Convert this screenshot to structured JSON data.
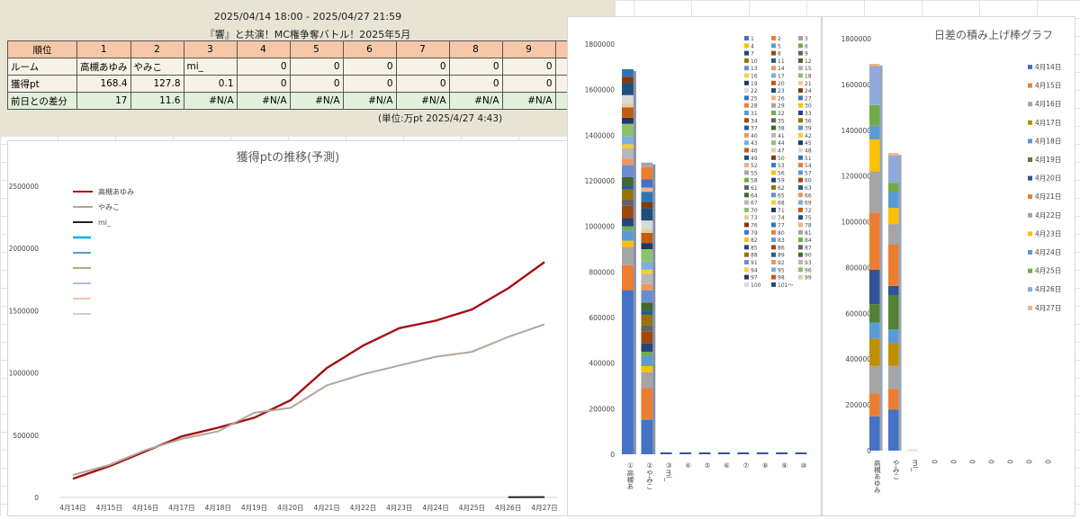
{
  "header": {
    "date_range": "2025/04/14 18:00 - 2025/04/27 21:59",
    "event_title": "『響』と共演！MC権争奪バトル！2025年5月"
  },
  "table": {
    "head": [
      "順位",
      "1",
      "2",
      "3",
      "4",
      "5",
      "6",
      "7",
      "8",
      "9",
      "10"
    ],
    "room": [
      "ルーム",
      "高槻あゆみ",
      "やみこ",
      "mi_",
      "0",
      "0",
      "0",
      "0",
      "0",
      "0",
      "0"
    ],
    "points": [
      "獲得pt",
      "168.4",
      "127.8",
      "0.1",
      "0",
      "0",
      "0",
      "0",
      "0",
      "0",
      "0"
    ],
    "diff": [
      "前日との差分",
      "17",
      "11.6",
      "#N/A",
      "#N/A",
      "#N/A",
      "#N/A",
      "#N/A",
      "#N/A",
      "#N/A",
      "#N/A"
    ]
  },
  "unit_note": "(単位:万pt 2025/4/27 4:43)",
  "colors": {
    "ayumi": "#a50f15",
    "yamiko": "#b3a59b",
    "mi": "#222222",
    "bar_blue": "#4472c4",
    "bar_orange": "#ed7d31",
    "header_orange": "#f7c8a8",
    "diff_green": "#e2efda"
  },
  "chart_data": [
    {
      "type": "line",
      "title": "獲得ptの推移(予測)",
      "categories": [
        "4月14日",
        "4月15日",
        "4月16日",
        "4月17日",
        "4月18日",
        "4月19日",
        "4月20日",
        "4月21日",
        "4月22日",
        "4月23日",
        "4月24日",
        "4月25日",
        "4月26日",
        "4月27日"
      ],
      "ylim": [
        0,
        2500000
      ],
      "yticks": [
        0,
        500000,
        1000000,
        1500000,
        2000000,
        2500000
      ],
      "legend_position": "top-left",
      "series": [
        {
          "name": "高槻あゆみ",
          "color": "#a50f15",
          "values": [
            150000,
            250000,
            370000,
            490000,
            560000,
            640000,
            780000,
            1040000,
            1220000,
            1360000,
            1420000,
            1510000,
            1680000,
            1890000
          ]
        },
        {
          "name": "やみこ",
          "color": "#b3a59b",
          "values": [
            180000,
            260000,
            380000,
            470000,
            530000,
            680000,
            720000,
            900000,
            990000,
            1060000,
            1130000,
            1170000,
            1290000,
            1390000
          ]
        },
        {
          "name": "mi_",
          "color": "#222222",
          "values": [
            null,
            null,
            null,
            null,
            null,
            null,
            null,
            null,
            null,
            null,
            null,
            null,
            2000,
            3000
          ]
        }
      ],
      "extra_legend_colors": [
        "#00b0f0",
        "#2e75b6",
        "#70ad47",
        "#8faadc",
        "#f4b183",
        "#bfbfbf"
      ]
    },
    {
      "type": "bar",
      "title": "",
      "stacked": true,
      "categories": [
        "①高槻あ",
        "②やみこ",
        "③mi_",
        "④",
        "⑤",
        "⑥",
        "⑦",
        "⑧",
        "⑨",
        "⑩"
      ],
      "totals": [
        1690000,
        1280000,
        3000,
        1500,
        1500,
        1500,
        1500,
        1500,
        1500,
        1500
      ],
      "ylim": [
        0,
        1800000
      ],
      "yticks": [
        0,
        200000,
        400000,
        600000,
        800000,
        1000000,
        1200000,
        1400000,
        1600000,
        1800000
      ],
      "base_segments": [
        [
          720000,
          110000,
          80000
        ],
        [
          150000,
          140000,
          70000
        ]
      ],
      "legend_labels": [
        "1",
        "2",
        "3",
        "4",
        "5",
        "6",
        "7",
        "8",
        "9",
        "10",
        "11",
        "12",
        "13",
        "14",
        "15",
        "16",
        "17",
        "18",
        "19",
        "20",
        "21",
        "22",
        "23",
        "24",
        "25",
        "26",
        "27",
        "28",
        "29",
        "30",
        "31",
        "32",
        "33",
        "34",
        "35",
        "36",
        "37",
        "38",
        "39",
        "40",
        "41",
        "42",
        "43",
        "44",
        "45",
        "46",
        "47",
        "48",
        "49",
        "50",
        "51",
        "52",
        "53",
        "54",
        "55",
        "56",
        "57",
        "58",
        "59",
        "60",
        "61",
        "62",
        "63",
        "64",
        "65",
        "66",
        "67",
        "68",
        "69",
        "70",
        "71",
        "72",
        "73",
        "74",
        "75",
        "76",
        "77",
        "78",
        "79",
        "80",
        "81",
        "82",
        "83",
        "84",
        "85",
        "86",
        "87",
        "88",
        "89",
        "90",
        "91",
        "92",
        "93",
        "94",
        "95",
        "96",
        "97",
        "98",
        "99",
        "100",
        "101～"
      ],
      "legend_position": "top-right"
    },
    {
      "type": "bar",
      "title": "日差の積み上げ棒グラフ",
      "stacked": true,
      "categories": [
        "高槻あゆみ",
        "やみこ",
        "mi_",
        "0",
        "0",
        "0",
        "0",
        "0",
        "0",
        "0"
      ],
      "ylim": [
        0,
        1800000
      ],
      "yticks": [
        0,
        200000,
        400000,
        600000,
        800000,
        1000000,
        1200000,
        1400000,
        1600000,
        1800000
      ],
      "legend_position": "right",
      "series": [
        {
          "name": "4月14日",
          "color": "#4472c4",
          "values": [
            150000,
            180000,
            0,
            0,
            0,
            0,
            0,
            0,
            0,
            0
          ]
        },
        {
          "name": "4月15日",
          "color": "#ed7d31",
          "values": [
            100000,
            90000,
            0,
            0,
            0,
            0,
            0,
            0,
            0,
            0
          ]
        },
        {
          "name": "4月16日",
          "color": "#a5a5a5",
          "values": [
            120000,
            100000,
            0,
            0,
            0,
            0,
            0,
            0,
            0,
            0
          ]
        },
        {
          "name": "4月17日",
          "color": "#c09000",
          "values": [
            120000,
            100000,
            0,
            0,
            0,
            0,
            0,
            0,
            0,
            0
          ]
        },
        {
          "name": "4月18日",
          "color": "#5b9bd5",
          "values": [
            70000,
            60000,
            0,
            0,
            0,
            0,
            0,
            0,
            0,
            0
          ]
        },
        {
          "name": "4月19日",
          "color": "#548235",
          "values": [
            80000,
            150000,
            0,
            0,
            0,
            0,
            0,
            0,
            0,
            0
          ]
        },
        {
          "name": "4月20日",
          "color": "#2f5597",
          "values": [
            150000,
            40000,
            0,
            0,
            0,
            0,
            0,
            0,
            0,
            0
          ]
        },
        {
          "name": "4月21日",
          "color": "#ed7d31",
          "values": [
            250000,
            180000,
            0,
            0,
            0,
            0,
            0,
            0,
            0,
            0
          ]
        },
        {
          "name": "4月22日",
          "color": "#a5a5a5",
          "values": [
            180000,
            90000,
            0,
            0,
            0,
            0,
            0,
            0,
            0,
            0
          ]
        },
        {
          "name": "4月23日",
          "color": "#ffc000",
          "values": [
            140000,
            70000,
            0,
            0,
            0,
            0,
            0,
            0,
            0,
            0
          ]
        },
        {
          "name": "4月24日",
          "color": "#5b9bd5",
          "values": [
            60000,
            70000,
            0,
            0,
            0,
            0,
            0,
            0,
            0,
            0
          ]
        },
        {
          "name": "4月25日",
          "color": "#70ad47",
          "values": [
            90000,
            40000,
            0,
            0,
            0,
            0,
            0,
            0,
            0,
            0
          ]
        },
        {
          "name": "4月26日",
          "color": "#8faadc",
          "values": [
            170000,
            120000,
            0,
            0,
            0,
            0,
            0,
            0,
            0,
            0
          ]
        },
        {
          "name": "4月27日",
          "color": "#f4b183",
          "values": [
            10000,
            10000,
            3000,
            0,
            0,
            0,
            0,
            0,
            0,
            0
          ]
        }
      ]
    }
  ]
}
